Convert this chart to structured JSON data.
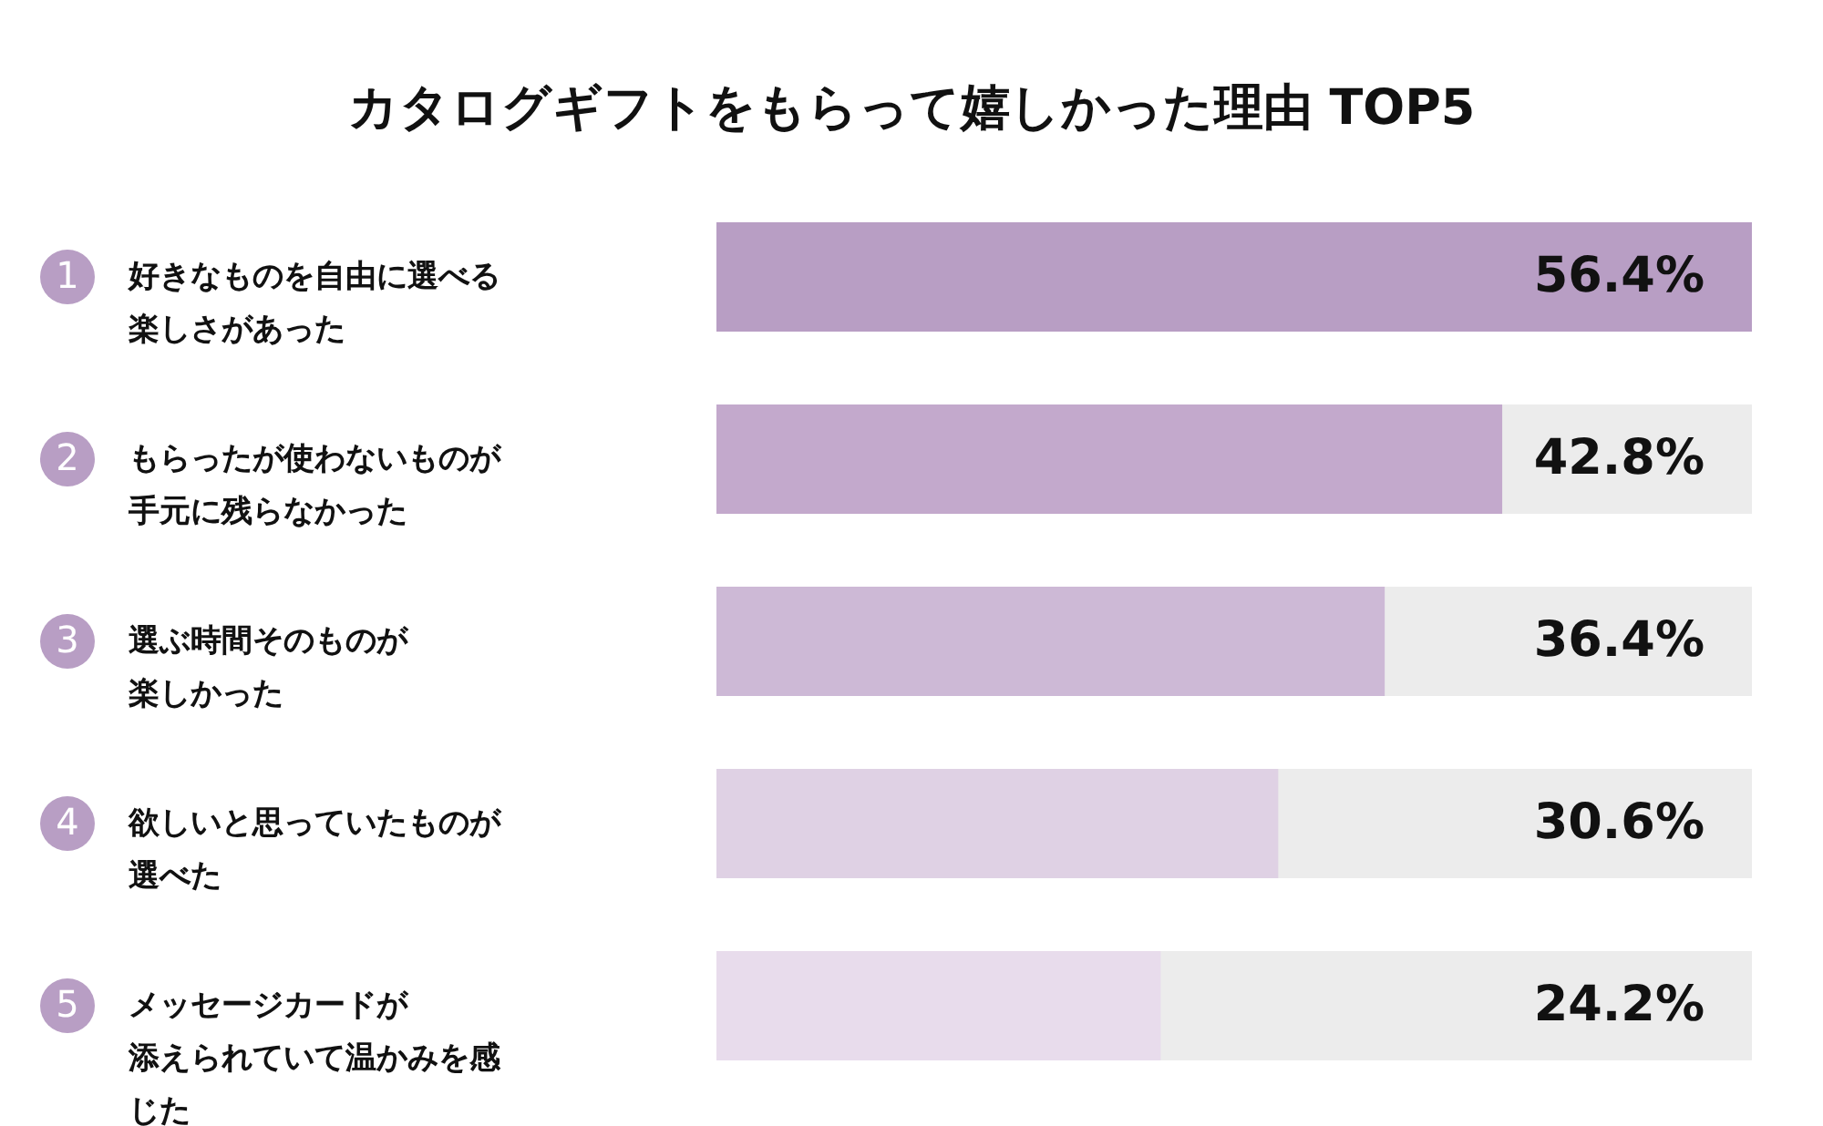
{
  "chart_data": {
    "type": "bar",
    "orientation": "horizontal",
    "title": "カタログギフトをもらって嬉しかった理由 TOP5",
    "categories": [
      "好きなものを自由に選べる楽しさがあった",
      "もらったが使わないものが手元に残らなかった",
      "選ぶ時間そのものが楽しかった",
      "欲しいと思っていたものが選べた",
      "メッセージカードが添えられていて温かみを感じた"
    ],
    "values": [
      56.4,
      42.8,
      36.4,
      30.6,
      24.2
    ],
    "colors": [
      "#b89ec4",
      "#c3a9cc",
      "#cdb9d6",
      "#dfd1e4",
      "#e8dcec"
    ],
    "value_labels": [
      "56.4%",
      "42.8%",
      "36.4%",
      "30.6%",
      "24.2%"
    ],
    "annotations": [
      "1",
      "2",
      "3",
      "4",
      "5"
    ],
    "xlim": [
      0,
      56.4
    ],
    "tick_labels": "y"
  }
}
